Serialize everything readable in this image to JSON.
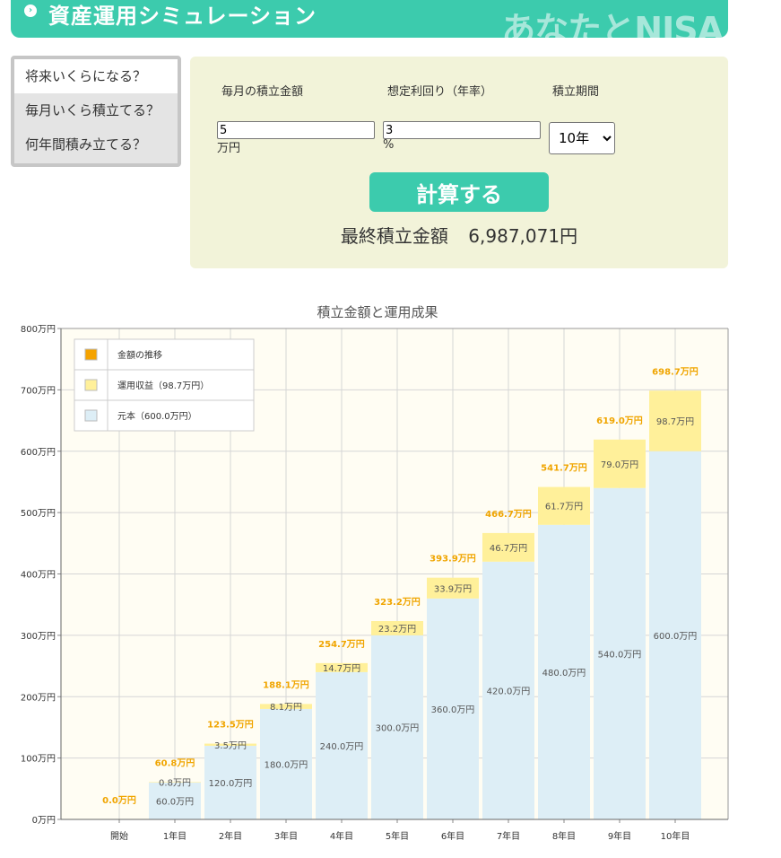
{
  "header": {
    "title": "資産運用シミュレーション",
    "logo": "あなたとNISA"
  },
  "tabs": [
    {
      "label": "将来いくらになる？",
      "active": true
    },
    {
      "label": "毎月いくら積立てる？",
      "active": false
    },
    {
      "label": "何年間積み立てる？",
      "active": false
    }
  ],
  "form": {
    "monthly_label": "毎月の積立金額",
    "rate_label": "想定利回り（年率）",
    "period_label": "積立期間",
    "monthly_value": "5",
    "monthly_unit": "万円",
    "rate_value": "3",
    "rate_unit": "%",
    "period_value": "10年",
    "calc_button": "計算する",
    "result_label": "最終積立金額",
    "result_value": "6,987,071円"
  },
  "colors": {
    "accent": "#3ccbad",
    "principal": "#ddeef6",
    "profit": "#fff09a",
    "total_label": "#f0a500",
    "legend_total": "#f5a300"
  },
  "chart_data": {
    "type": "bar",
    "title": "積立金額と運用成果",
    "categories": [
      "開始",
      "1年目",
      "2年目",
      "3年目",
      "4年目",
      "5年目",
      "6年目",
      "7年目",
      "8年目",
      "9年目",
      "10年目"
    ],
    "ylim": [
      0,
      800
    ],
    "yticks": [
      "0万円",
      "100万円",
      "200万円",
      "300万円",
      "400万円",
      "500万円",
      "600万円",
      "700万円",
      "800万円"
    ],
    "series": [
      {
        "name": "元本（600.0万円）",
        "values": [
          0,
          60.0,
          120.0,
          180.0,
          240.0,
          300.0,
          360.0,
          420.0,
          480.0,
          540.0,
          600.0
        ],
        "labels": [
          "",
          "60.0万円",
          "120.0万円",
          "180.0万円",
          "240.0万円",
          "300.0万円",
          "360.0万円",
          "420.0万円",
          "480.0万円",
          "540.0万円",
          "600.0万円"
        ]
      },
      {
        "name": "運用収益（98.7万円）",
        "values": [
          0,
          0.8,
          3.5,
          8.1,
          14.7,
          23.2,
          33.9,
          46.7,
          61.7,
          79.0,
          98.7
        ],
        "labels": [
          "",
          "0.8万円",
          "3.5万円",
          "8.1万円",
          "14.7万円",
          "23.2万円",
          "33.9万円",
          "46.7万円",
          "61.7万円",
          "79.0万円",
          "98.7万円"
        ]
      }
    ],
    "totals": [
      "0.0万円",
      "60.8万円",
      "123.5万円",
      "188.1万円",
      "254.7万円",
      "323.2万円",
      "393.9万円",
      "466.7万円",
      "541.7万円",
      "619.0万円",
      "698.7万円"
    ],
    "legend": [
      "金額の推移",
      "運用収益（98.7万円）",
      "元本（600.0万円）"
    ],
    "legend_position": "top-left",
    "grid": true
  }
}
